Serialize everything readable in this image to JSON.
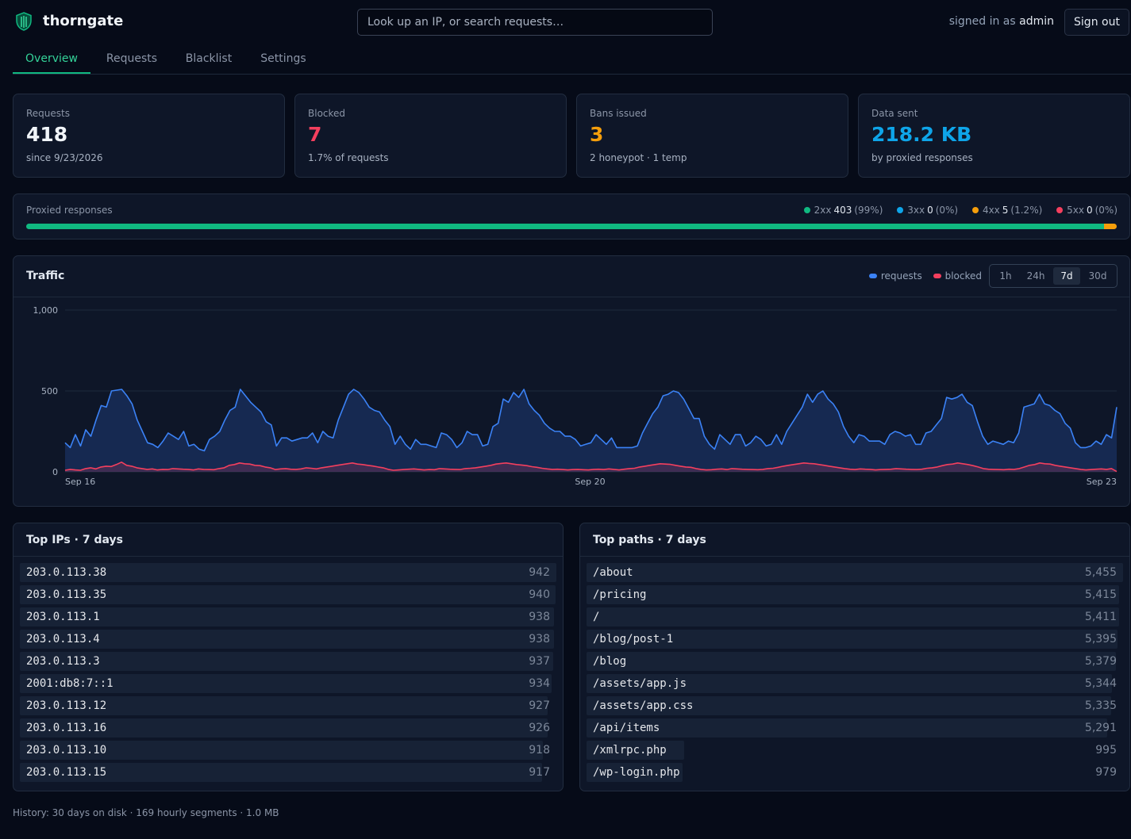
{
  "app": {
    "name": "thorngate",
    "search_placeholder": "Look up an IP, or search requests…",
    "signed_in_prefix": "signed in as",
    "user": "admin",
    "sign_out": "Sign out"
  },
  "tabs": [
    {
      "label": "Overview",
      "active": true
    },
    {
      "label": "Requests",
      "active": false
    },
    {
      "label": "Blacklist",
      "active": false
    },
    {
      "label": "Settings",
      "active": false
    }
  ],
  "stats": [
    {
      "label": "Requests",
      "value": "418",
      "sub": "since 9/23/2026",
      "color": "#f1f5f9"
    },
    {
      "label": "Blocked",
      "value": "7",
      "sub": "1.7% of requests",
      "color": "#f43f5e"
    },
    {
      "label": "Bans issued",
      "value": "3",
      "sub": "2 honeypot · 1 temp",
      "color": "#f59e0b"
    },
    {
      "label": "Data sent",
      "value": "218.2 KB",
      "sub": "by proxied responses",
      "color": "#0ea5e9"
    }
  ],
  "responses": {
    "label": "Proxied responses",
    "classes": [
      {
        "name": "2xx",
        "count": "403",
        "pct": "(99%)",
        "fraction": 0.988,
        "color": "#10b981"
      },
      {
        "name": "3xx",
        "count": "0",
        "pct": "(0%)",
        "fraction": 0,
        "color": "#0ea5e9"
      },
      {
        "name": "4xx",
        "count": "5",
        "pct": "(1.2%)",
        "fraction": 0.012,
        "color": "#f59e0b"
      },
      {
        "name": "5xx",
        "count": "0",
        "pct": "(0%)",
        "fraction": 0,
        "color": "#f43f5e"
      }
    ]
  },
  "traffic": {
    "title": "Traffic",
    "legend": [
      {
        "label": "requests",
        "color": "#3b82f6"
      },
      {
        "label": "blocked",
        "color": "#f43f5e"
      }
    ],
    "ranges": [
      {
        "label": "1h",
        "active": false
      },
      {
        "label": "24h",
        "active": false
      },
      {
        "label": "7d",
        "active": true
      },
      {
        "label": "30d",
        "active": false
      }
    ]
  },
  "chart_data": {
    "type": "area",
    "title": "Traffic",
    "series": [
      {
        "name": "requests",
        "color": "#3b82f6",
        "values": [
          180,
          150,
          230,
          160,
          260,
          220,
          320,
          410,
          400,
          500,
          505,
          510,
          470,
          420,
          320,
          250,
          180,
          170,
          150,
          190,
          240,
          220,
          200,
          250,
          160,
          170,
          140,
          130,
          200,
          220,
          250,
          320,
          380,
          400,
          510,
          470,
          430,
          400,
          370,
          310,
          290,
          160,
          210,
          210,
          190,
          200,
          210,
          210,
          240,
          180,
          250,
          220,
          210,
          320,
          400,
          480,
          510,
          490,
          450,
          400,
          380,
          370,
          320,
          280,
          170,
          220,
          170,
          140,
          200,
          170,
          170,
          160,
          150,
          240,
          230,
          200,
          150,
          180,
          250,
          230,
          230,
          160,
          170,
          280,
          300,
          450,
          430,
          490,
          460,
          510,
          420,
          380,
          350,
          300,
          270,
          250,
          250,
          220,
          220,
          200,
          160,
          170,
          180,
          230,
          200,
          170,
          210,
          150,
          150,
          150,
          150,
          160,
          240,
          300,
          360,
          400,
          470,
          480,
          500,
          490,
          450,
          390,
          330,
          330,
          220,
          170,
          140,
          230,
          200,
          170,
          230,
          230,
          160,
          180,
          220,
          200,
          160,
          170,
          230,
          170,
          250,
          300,
          350,
          400,
          480,
          430,
          480,
          500,
          450,
          420,
          370,
          280,
          220,
          180,
          230,
          220,
          190,
          190,
          190,
          170,
          230,
          250,
          240,
          220,
          230,
          170,
          170,
          240,
          250,
          290,
          330,
          460,
          450,
          460,
          480,
          430,
          410,
          310,
          220,
          170,
          190,
          180,
          170,
          190,
          180,
          240,
          400,
          410,
          420,
          480,
          420,
          410,
          380,
          360,
          300,
          270,
          180,
          150,
          150,
          160,
          190,
          170,
          230,
          210,
          400
        ]
      },
      {
        "name": "blocked",
        "color": "#f43f5e",
        "values": [
          10,
          15,
          12,
          10,
          20,
          25,
          18,
          30,
          35,
          33,
          45,
          60,
          40,
          35,
          25,
          20,
          15,
          18,
          12,
          15,
          14,
          20,
          18,
          16,
          15,
          12,
          18,
          15,
          14,
          13,
          20,
          25,
          40,
          45,
          55,
          50,
          48,
          40,
          38,
          30,
          25,
          14,
          18,
          20,
          16,
          15,
          18,
          25,
          22,
          18,
          25,
          30,
          35,
          40,
          45,
          50,
          55,
          48,
          45,
          40,
          36,
          30,
          25,
          15,
          10,
          12,
          14,
          16,
          18,
          15,
          12,
          14,
          13,
          20,
          18,
          16,
          15,
          14,
          20,
          22,
          25,
          30,
          35,
          40,
          48,
          52,
          55,
          50,
          45,
          42,
          38,
          32,
          28,
          22,
          18,
          15,
          16,
          14,
          12,
          14,
          15,
          13,
          12,
          15,
          16,
          14,
          18,
          15,
          12,
          16,
          20,
          22,
          30,
          35,
          40,
          45,
          50,
          48,
          46,
          40,
          35,
          30,
          28,
          20,
          15,
          12,
          13,
          16,
          18,
          14,
          20,
          18,
          16,
          15,
          14,
          13,
          15,
          20,
          22,
          28,
          35,
          40,
          45,
          50,
          55,
          52,
          50,
          45,
          40,
          35,
          30,
          25,
          20,
          16,
          14,
          18,
          16,
          15,
          12,
          14,
          15,
          16,
          20,
          18,
          16,
          15,
          14,
          16,
          22,
          25,
          30,
          38,
          45,
          48,
          55,
          50,
          45,
          38,
          30,
          20,
          16,
          15,
          14,
          13,
          16,
          15,
          20,
          30,
          40,
          45,
          55,
          50,
          48,
          40,
          35,
          30,
          25,
          20,
          15,
          12,
          14,
          16,
          18,
          15,
          20,
          2
        ]
      }
    ],
    "x_labels": [
      "Sep 16",
      "Sep 20",
      "Sep 23"
    ],
    "y_ticks": [
      "0",
      "500",
      "1,000"
    ],
    "ylim": [
      0,
      1000
    ],
    "grid": true
  },
  "top_ips": {
    "title": "Top IPs · 7 days",
    "rows": [
      {
        "key": "203.0.113.38",
        "value": "942",
        "n": 942
      },
      {
        "key": "203.0.113.35",
        "value": "940",
        "n": 940
      },
      {
        "key": "203.0.113.1",
        "value": "938",
        "n": 938
      },
      {
        "key": "203.0.113.4",
        "value": "938",
        "n": 938
      },
      {
        "key": "203.0.113.3",
        "value": "937",
        "n": 937
      },
      {
        "key": "2001:db8:7::1",
        "value": "934",
        "n": 934
      },
      {
        "key": "203.0.113.12",
        "value": "927",
        "n": 927
      },
      {
        "key": "203.0.113.16",
        "value": "926",
        "n": 926
      },
      {
        "key": "203.0.113.10",
        "value": "918",
        "n": 918
      },
      {
        "key": "203.0.113.15",
        "value": "917",
        "n": 917
      }
    ]
  },
  "top_paths": {
    "title": "Top paths · 7 days",
    "rows": [
      {
        "key": "/about",
        "value": "5,455",
        "n": 5455
      },
      {
        "key": "/pricing",
        "value": "5,415",
        "n": 5415
      },
      {
        "key": "/",
        "value": "5,411",
        "n": 5411
      },
      {
        "key": "/blog/post-1",
        "value": "5,395",
        "n": 5395
      },
      {
        "key": "/blog",
        "value": "5,379",
        "n": 5379
      },
      {
        "key": "/assets/app.js",
        "value": "5,344",
        "n": 5344
      },
      {
        "key": "/assets/app.css",
        "value": "5,335",
        "n": 5335
      },
      {
        "key": "/api/items",
        "value": "5,291",
        "n": 5291
      },
      {
        "key": "/xmlrpc.php",
        "value": "995",
        "n": 995
      },
      {
        "key": "/wp-login.php",
        "value": "979",
        "n": 979
      }
    ]
  },
  "footer": "History: 30 days on disk · 169 hourly segments · 1.0 MB"
}
